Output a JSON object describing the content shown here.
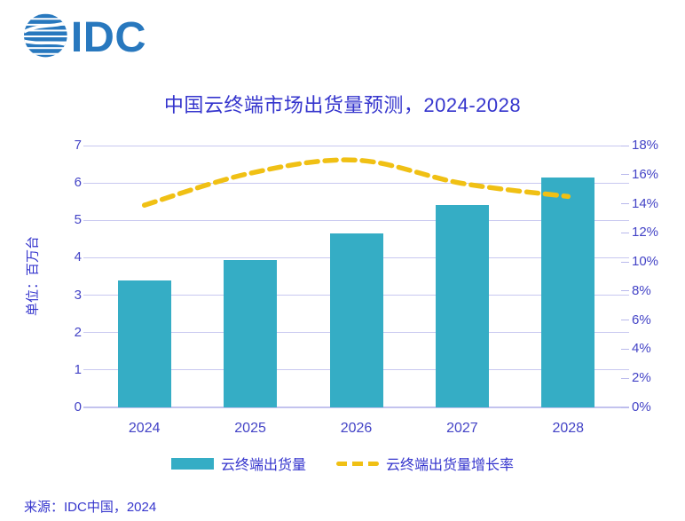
{
  "logo": {
    "text": "IDC",
    "color": "#2878BE"
  },
  "title": {
    "text": "中国云终端市场出货量预测，2024-2028"
  },
  "source": {
    "text": "来源：IDC中国，2024"
  },
  "chart_data": {
    "type": "bar",
    "subtype": "combo-bar-line-dual-axis",
    "title": "中国云终端市场出货量预测，2024-2028",
    "categories": [
      "2024",
      "2025",
      "2026",
      "2027",
      "2028"
    ],
    "series": [
      {
        "name": "云终端出货量",
        "type": "bar",
        "axis": "left",
        "unit": "百万台",
        "values": [
          3.4,
          3.95,
          4.65,
          5.4,
          6.15
        ]
      },
      {
        "name": "云终端出货量增长率",
        "type": "line",
        "axis": "right",
        "unit": "%",
        "values": [
          13.9,
          16.1,
          17.0,
          15.4,
          14.5
        ]
      }
    ],
    "left_axis": {
      "title": "单位：百万台",
      "min": 0,
      "max": 7,
      "step": 1,
      "ticks": [
        "0",
        "1",
        "2",
        "3",
        "4",
        "5",
        "6",
        "7"
      ]
    },
    "right_axis": {
      "min": 0,
      "max": 18,
      "step": 2,
      "ticks": [
        "0%",
        "2%",
        "4%",
        "6%",
        "8%",
        "10%",
        "12%",
        "14%",
        "16%",
        "18%"
      ]
    },
    "legend": [
      {
        "label": "云终端出货量",
        "swatch": "bar"
      },
      {
        "label": "云终端出货量增长率",
        "swatch": "dashed-line"
      }
    ],
    "legend_position": "bottom",
    "grid": "horizontal",
    "colors": {
      "bar": "#35ADC5",
      "line": "#F0C014",
      "gridline": "#C8C8F0",
      "text": "#3535CD",
      "logo": "#2878BE"
    }
  }
}
